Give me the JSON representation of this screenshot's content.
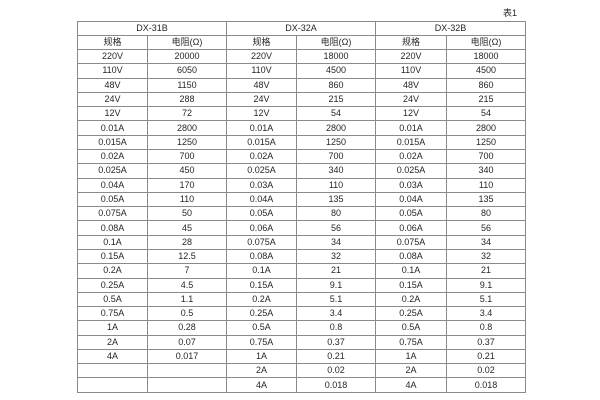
{
  "page": {
    "caption": "表1"
  },
  "table": {
    "groups": [
      {
        "name": "DX-31B"
      },
      {
        "name": "DX-32A"
      },
      {
        "name": "DX-32B"
      }
    ],
    "col_headers": [
      "规格",
      "电阻(Ω)",
      "规格",
      "电阻(Ω)",
      "规格",
      "电阻(Ω)"
    ],
    "rows": [
      [
        "220V",
        "20000",
        "220V",
        "18000",
        "220V",
        "18000"
      ],
      [
        "110V",
        "6050",
        "110V",
        "4500",
        "110V",
        "4500"
      ],
      [
        "48V",
        "1150",
        "48V",
        "860",
        "48V",
        "860"
      ],
      [
        "24V",
        "288",
        "24V",
        "215",
        "24V",
        "215"
      ],
      [
        "12V",
        "72",
        "12V",
        "54",
        "12V",
        "54"
      ],
      [
        "0.01A",
        "2800",
        "0.01A",
        "2800",
        "0.01A",
        "2800"
      ],
      [
        "0.015A",
        "1250",
        "0.015A",
        "1250",
        "0.015A",
        "1250"
      ],
      [
        "0.02A",
        "700",
        "0.02A",
        "700",
        "0.02A",
        "700"
      ],
      [
        "0.025A",
        "450",
        "0.025A",
        "340",
        "0.025A",
        "340"
      ],
      [
        "0.04A",
        "170",
        "0.03A",
        "110",
        "0.03A",
        "110"
      ],
      [
        "0.05A",
        "110",
        "0.04A",
        "135",
        "0.04A",
        "135"
      ],
      [
        "0.075A",
        "50",
        "0.05A",
        "80",
        "0.05A",
        "80"
      ],
      [
        "0.08A",
        "45",
        "0.06A",
        "56",
        "0.06A",
        "56"
      ],
      [
        "0.1A",
        "28",
        "0.075A",
        "34",
        "0.075A",
        "34"
      ],
      [
        "0.15A",
        "12.5",
        "0.08A",
        "32",
        "0.08A",
        "32"
      ],
      [
        "0.2A",
        "7",
        "0.1A",
        "21",
        "0.1A",
        "21"
      ],
      [
        "0.25A",
        "4.5",
        "0.15A",
        "9.1",
        "0.15A",
        "9.1"
      ],
      [
        "0.5A",
        "1.1",
        "0.2A",
        "5.1",
        "0.2A",
        "5.1"
      ],
      [
        "0.75A",
        "0.5",
        "0.25A",
        "3.4",
        "0.25A",
        "3.4"
      ],
      [
        "1A",
        "0.28",
        "0.5A",
        "0.8",
        "0.5A",
        "0.8"
      ],
      [
        "2A",
        "0.07",
        "0.75A",
        "0.37",
        "0.75A",
        "0.37"
      ],
      [
        "4A",
        "0.017",
        "1A",
        "0.21",
        "1A",
        "0.21"
      ],
      [
        "",
        "",
        "2A",
        "0.02",
        "2A",
        "0.02"
      ],
      [
        "",
        "",
        "4A",
        "0.018",
        "4A",
        "0.018"
      ]
    ],
    "colors": {
      "border": "#8a8a8a",
      "text": "#262626",
      "background": "#ffffff"
    }
  }
}
